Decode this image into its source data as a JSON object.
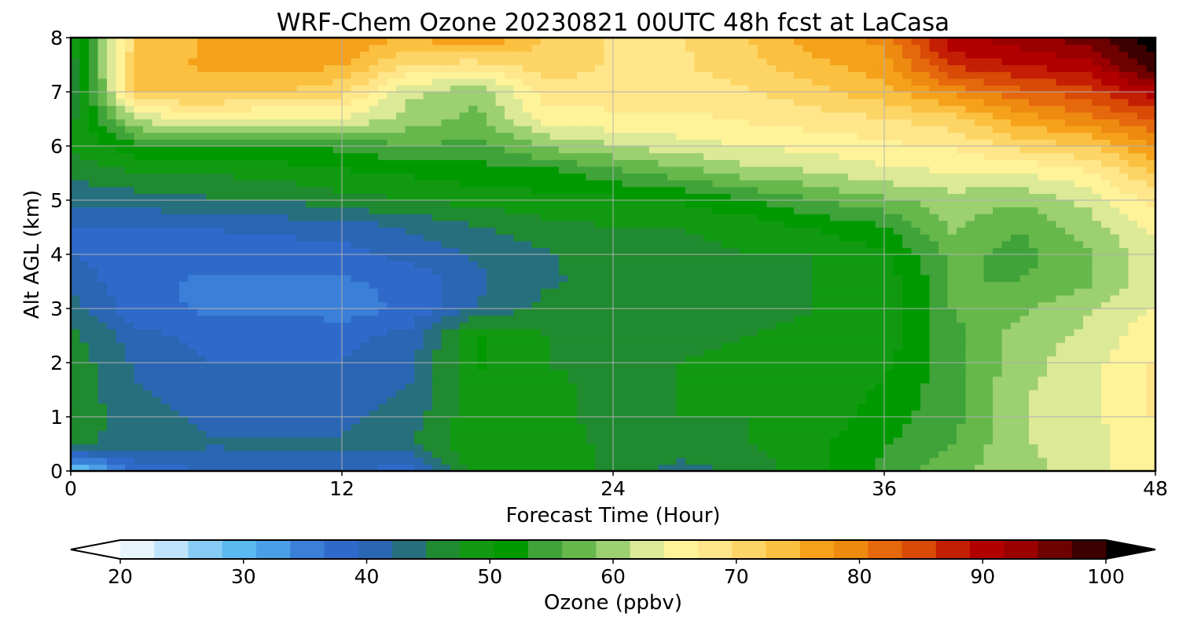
{
  "chart_data": {
    "type": "heatmap",
    "title": "WRF-Chem Ozone  20230821 00UTC 48h fcst at LaCasa",
    "xlabel": "Forecast Time (Hour)",
    "ylabel": "Alt AGL (km)",
    "xlim": [
      0,
      48
    ],
    "ylim": [
      0,
      8
    ],
    "xticks": [
      0,
      12,
      24,
      36,
      48
    ],
    "yticks": [
      0,
      1,
      2,
      3,
      4,
      5,
      6,
      7,
      8
    ],
    "grid": true,
    "x": [
      0,
      3,
      6,
      9,
      12,
      15,
      18,
      21,
      24,
      27,
      30,
      33,
      36,
      39,
      42,
      45,
      48
    ],
    "y": [
      0,
      0.5,
      1,
      1.5,
      2,
      2.5,
      3,
      3.5,
      4,
      4.5,
      5,
      5.5,
      6,
      6.5,
      7,
      7.5,
      8
    ],
    "z": [
      [
        28,
        38,
        40,
        41,
        41,
        38,
        50,
        50,
        47,
        44,
        46,
        50,
        54,
        58,
        60,
        63,
        66
      ],
      [
        46,
        44,
        43,
        43,
        43,
        45,
        50,
        50,
        47,
        47,
        48,
        50,
        53,
        56,
        61,
        63,
        66
      ],
      [
        47,
        44,
        42,
        42,
        42,
        44,
        50,
        49,
        47,
        48,
        48,
        49,
        52,
        55,
        61,
        63,
        67
      ],
      [
        47,
        43,
        41,
        41,
        41,
        43,
        50,
        49,
        47,
        48,
        49,
        49,
        51,
        55,
        61,
        63,
        67
      ],
      [
        47,
        42,
        40,
        40,
        40,
        42,
        51,
        48,
        47,
        48,
        49,
        49,
        50,
        55,
        60,
        63,
        67
      ],
      [
        46,
        41,
        39,
        39,
        39,
        41,
        51,
        48,
        47,
        47,
        48,
        49,
        49,
        55,
        60,
        62,
        66
      ],
      [
        44,
        38,
        37,
        37,
        36,
        38,
        43,
        46,
        46,
        47,
        47,
        48,
        48,
        56,
        58,
        61,
        64
      ],
      [
        42,
        38,
        37,
        37,
        37,
        38,
        42,
        45,
        46,
        47,
        47,
        48,
        49,
        56,
        56,
        58,
        63
      ],
      [
        40,
        38,
        38,
        38,
        39,
        41,
        43,
        45,
        47,
        47,
        48,
        48,
        50,
        57,
        55,
        58,
        63
      ],
      [
        40,
        40,
        40,
        41,
        41,
        43,
        45,
        47,
        48,
        48,
        49,
        51,
        53,
        59,
        56,
        60,
        65
      ],
      [
        43,
        44,
        45,
        45,
        47,
        48,
        49,
        50,
        50,
        51,
        53,
        56,
        58,
        60,
        59,
        62,
        68
      ],
      [
        46,
        48,
        48,
        49,
        50,
        51,
        52,
        52,
        55,
        57,
        60,
        61,
        63,
        64,
        64,
        66,
        72
      ],
      [
        48,
        53,
        53,
        53,
        54,
        56,
        55,
        59,
        61,
        63,
        64,
        65,
        66,
        67,
        70,
        72,
        77
      ],
      [
        47,
        62,
        64,
        63,
        64,
        60,
        58,
        65,
        66,
        66,
        67,
        68,
        69,
        71,
        76,
        79,
        83
      ],
      [
        45,
        73,
        73,
        72,
        70,
        62,
        59,
        68,
        68,
        68,
        69,
        71,
        74,
        78,
        82,
        84,
        90
      ],
      [
        46,
        74,
        75,
        76,
        75,
        69,
        68,
        71,
        69,
        69,
        71,
        74,
        76,
        86,
        88,
        90,
        98
      ],
      [
        47,
        72,
        75,
        77,
        77,
        74,
        78,
        72,
        69,
        69,
        72,
        76,
        78,
        90,
        92,
        95,
        100
      ]
    ],
    "colorbar": {
      "label": "Ozone  (ppbv)",
      "min": 20,
      "max": 100,
      "ticks": [
        20,
        30,
        40,
        50,
        60,
        70,
        80,
        90,
        100
      ],
      "extend": "both",
      "colors": [
        "#ffffff",
        "#e8f4fc",
        "#bfe3fa",
        "#86cbf5",
        "#5bb8f0",
        "#4aa0e6",
        "#3a7fd8",
        "#2f6acb",
        "#2a66b4",
        "#26707e",
        "#1f8a2f",
        "#119a11",
        "#009a00",
        "#3fa33a",
        "#66b84b",
        "#9cd070",
        "#dce996",
        "#fff39a",
        "#ffe68b",
        "#fdd567",
        "#fbc040",
        "#f6a11a",
        "#ee8a10",
        "#e6680c",
        "#d84a06",
        "#c41f04",
        "#b20000",
        "#9a0000",
        "#6e0000",
        "#3c0000",
        "#000000"
      ]
    }
  }
}
